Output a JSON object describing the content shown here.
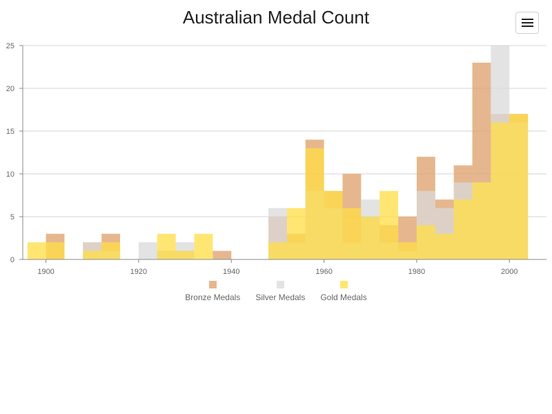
{
  "chart_title": "Australian Medal Count",
  "menu_icon": "hamburger-menu-icon",
  "chart_data": {
    "type": "bar",
    "stacked": false,
    "title": "Australian Medal Count",
    "xlabel": "",
    "ylabel": "",
    "xlim": [
      1895,
      2008
    ],
    "ylim": [
      0,
      25
    ],
    "x_ticks": [
      1900,
      1920,
      1940,
      1960,
      1980,
      2000
    ],
    "y_ticks": [
      0,
      5,
      10,
      15,
      20,
      25
    ],
    "grid": "horizontal",
    "legend_position": "bottom-center",
    "bin_width_years": 4,
    "categories": [
      1896,
      1900,
      1904,
      1908,
      1912,
      1916,
      1920,
      1924,
      1928,
      1932,
      1936,
      1940,
      1944,
      1948,
      1952,
      1956,
      1960,
      1964,
      1968,
      1972,
      1976,
      1980,
      1984,
      1988,
      1992,
      1996,
      2000,
      2004
    ],
    "series": [
      {
        "name": "Bronze Medals",
        "color": "#dd9f68",
        "values": [
          0,
          3,
          0,
          2,
          3,
          0,
          0,
          1,
          1,
          0,
          1,
          0,
          0,
          5,
          3,
          14,
          8,
          10,
          5,
          4,
          5,
          12,
          7,
          11,
          23,
          17,
          17,
          0
        ]
      },
      {
        "name": "Silver Medals",
        "color": "#d9d9d9",
        "values": [
          0,
          0,
          0,
          2,
          1,
          0,
          2,
          1,
          2,
          0,
          0,
          0,
          0,
          6,
          2,
          8,
          6,
          2,
          7,
          2,
          1,
          8,
          6,
          9,
          9,
          25,
          16,
          0
        ]
      },
      {
        "name": "Gold Medals",
        "color": "#ffdd44",
        "values": [
          2,
          2,
          0,
          1,
          2,
          0,
          0,
          3,
          1,
          3,
          0,
          0,
          0,
          2,
          6,
          13,
          8,
          6,
          5,
          8,
          2,
          4,
          3,
          7,
          9,
          16,
          17,
          0
        ]
      }
    ]
  },
  "legend": [
    {
      "label": "Bronze Medals",
      "color": "#dd9f68"
    },
    {
      "label": "Silver Medals",
      "color": "#d9d9d9"
    },
    {
      "label": "Gold Medals",
      "color": "#ffdd44"
    }
  ]
}
